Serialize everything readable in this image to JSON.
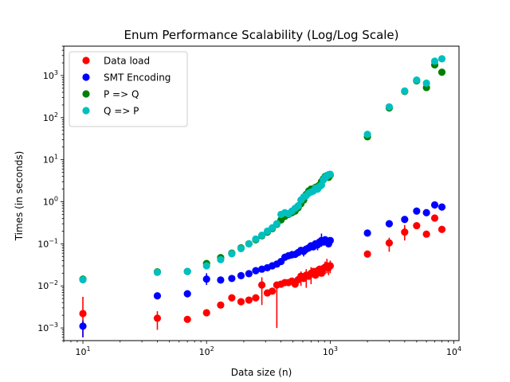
{
  "chart_data": {
    "type": "scatter",
    "title": "Enum Performance Scalability (Log/Log Scale)",
    "xlabel": "Data size (n)",
    "ylabel": "Times (in seconds)",
    "xscale": "log",
    "yscale": "log",
    "xlim": [
      7,
      11000
    ],
    "ylim": [
      0.0005,
      5000
    ],
    "x_ticks": [
      {
        "base": "10",
        "exp": "1",
        "value": 10
      },
      {
        "base": "10",
        "exp": "2",
        "value": 100
      },
      {
        "base": "10",
        "exp": "3",
        "value": 1000
      },
      {
        "base": "10",
        "exp": "4",
        "value": 10000
      }
    ],
    "y_ticks": [
      {
        "base": "10",
        "exp": "−3",
        "value": 0.001
      },
      {
        "base": "10",
        "exp": "−2",
        "value": 0.01
      },
      {
        "base": "10",
        "exp": "−1",
        "value": 0.1
      },
      {
        "base": "10",
        "exp": "0",
        "value": 1
      },
      {
        "base": "10",
        "exp": "1",
        "value": 10
      },
      {
        "base": "10",
        "exp": "2",
        "value": 100
      },
      {
        "base": "10",
        "exp": "3",
        "value": 1000
      }
    ],
    "grid": false,
    "legend_position": "top-left",
    "x": [
      10,
      40,
      70,
      100,
      130,
      160,
      190,
      220,
      250,
      280,
      310,
      340,
      370,
      400,
      430,
      460,
      490,
      520,
      550,
      580,
      610,
      640,
      670,
      700,
      730,
      760,
      790,
      820,
      850,
      880,
      910,
      940,
      970,
      1000,
      2000,
      3000,
      4000,
      5000,
      6000,
      7000,
      8000
    ],
    "series": [
      {
        "name": "Data load",
        "color": "#ff0000",
        "values": [
          0.0022,
          0.0017,
          0.0016,
          0.0023,
          0.0035,
          0.0052,
          0.0042,
          0.0046,
          0.0052,
          0.0105,
          0.0068,
          0.0075,
          0.0105,
          0.011,
          0.012,
          0.012,
          0.013,
          0.011,
          0.014,
          0.017,
          0.015,
          0.018,
          0.017,
          0.02,
          0.022,
          0.018,
          0.023,
          0.025,
          0.02,
          0.026,
          0.028,
          0.03,
          0.027,
          0.03,
          0.057,
          0.105,
          0.19,
          0.27,
          0.17,
          0.41,
          0.22
        ],
        "err_low": [
          0.0006,
          0.0009,
          0,
          0,
          0,
          0,
          0,
          0,
          0,
          0.0035,
          0,
          0,
          0.001,
          0,
          0,
          0,
          0,
          0,
          0,
          0.01,
          0,
          0.009,
          0,
          0.011,
          0,
          0,
          0,
          0,
          0,
          0,
          0.019,
          0.02,
          0.018,
          0.02,
          0,
          0.065,
          0.12,
          0,
          0,
          0,
          0
        ],
        "err_high": [
          0.0055,
          0.0025,
          0,
          0,
          0,
          0,
          0,
          0,
          0,
          0.016,
          0,
          0,
          0.012,
          0,
          0,
          0,
          0,
          0,
          0,
          0.022,
          0,
          0.025,
          0,
          0.028,
          0,
          0,
          0,
          0,
          0,
          0,
          0.038,
          0.044,
          0.036,
          0.04,
          0,
          0.14,
          0.28,
          0,
          0,
          0,
          0
        ]
      },
      {
        "name": "SMT Encoding",
        "color": "#0000ff",
        "values": [
          0.0011,
          0.0058,
          0.0065,
          0.0145,
          0.0138,
          0.015,
          0.0175,
          0.0195,
          0.023,
          0.025,
          0.027,
          0.03,
          0.033,
          0.038,
          0.048,
          0.052,
          0.055,
          0.056,
          0.062,
          0.07,
          0.066,
          0.075,
          0.08,
          0.09,
          0.085,
          0.1,
          0.094,
          0.11,
          0.12,
          0.11,
          0.125,
          0.115,
          0.1,
          0.12,
          0.18,
          0.3,
          0.38,
          0.6,
          0.55,
          0.84,
          0.75
        ],
        "err_low": [
          0.0006,
          0,
          0,
          0.0105,
          0,
          0,
          0,
          0,
          0,
          0,
          0,
          0,
          0,
          0,
          0,
          0,
          0.045,
          0,
          0,
          0,
          0.05,
          0,
          0,
          0,
          0,
          0,
          0.07,
          0,
          0.085,
          0,
          0,
          0,
          0,
          0,
          0,
          0,
          0,
          0,
          0,
          0,
          0
        ],
        "err_high": [
          0.0015,
          0,
          0,
          0.02,
          0,
          0,
          0,
          0,
          0,
          0,
          0,
          0,
          0,
          0,
          0,
          0,
          0.068,
          0,
          0,
          0,
          0.085,
          0,
          0,
          0,
          0,
          0,
          0.13,
          0,
          0.175,
          0,
          0,
          0,
          0,
          0,
          0,
          0,
          0,
          0,
          0,
          0,
          0
        ]
      },
      {
        "name": "P => Q",
        "color": "#008000",
        "values": [
          0.0145,
          0.0215,
          0.022,
          0.034,
          0.047,
          0.06,
          0.08,
          0.1,
          0.125,
          0.155,
          0.19,
          0.23,
          0.29,
          0.37,
          0.45,
          0.5,
          0.55,
          0.6,
          0.72,
          0.9,
          1.1,
          1.5,
          1.8,
          2.0,
          1.9,
          2.2,
          2.3,
          2.5,
          3.0,
          3.5,
          4.0,
          4.2,
          3.8,
          4.3,
          35,
          170,
          420,
          750,
          520,
          1800,
          1200
        ],
        "err_low": [
          0,
          0,
          0,
          0,
          0,
          0,
          0,
          0,
          0,
          0,
          0,
          0,
          0,
          0,
          0,
          0,
          0,
          0,
          0,
          0,
          0,
          0,
          0,
          0,
          0,
          0,
          0,
          0,
          0,
          0,
          0,
          0,
          0,
          0,
          0,
          0,
          0,
          0,
          0,
          0,
          0
        ],
        "err_high": [
          0,
          0,
          0,
          0,
          0,
          0,
          0,
          0,
          0,
          0,
          0,
          0,
          0,
          0,
          0,
          0,
          0,
          0,
          0,
          0,
          0,
          0,
          0,
          0,
          0,
          0,
          0,
          0,
          0,
          0,
          0,
          0,
          0,
          0,
          0,
          0,
          0,
          0,
          0,
          0,
          0
        ]
      },
      {
        "name": "Q => P",
        "color": "#00bfbf",
        "values": [
          0.014,
          0.021,
          0.022,
          0.03,
          0.042,
          0.058,
          0.077,
          0.1,
          0.13,
          0.16,
          0.2,
          0.24,
          0.3,
          0.5,
          0.55,
          0.52,
          0.6,
          0.7,
          0.8,
          1.1,
          1.3,
          1.4,
          1.6,
          1.7,
          1.8,
          2.1,
          2.0,
          2.3,
          2.5,
          3.3,
          3.8,
          4.1,
          4.4,
          4.5,
          40,
          180,
          430,
          780,
          660,
          2200,
          2500
        ],
        "err_low": [
          0,
          0,
          0,
          0,
          0,
          0,
          0,
          0,
          0,
          0,
          0,
          0,
          0,
          0,
          0,
          0,
          0,
          0,
          0,
          0,
          0,
          0,
          0,
          0,
          0,
          0,
          0,
          0,
          0,
          0,
          0,
          0,
          0,
          0,
          0,
          0,
          0,
          0,
          0,
          0,
          0
        ],
        "err_high": [
          0,
          0,
          0,
          0,
          0,
          0,
          0,
          0,
          0,
          0,
          0,
          0,
          0,
          0,
          0,
          0,
          0,
          0,
          0,
          0,
          0,
          0,
          0,
          0,
          0,
          0,
          0,
          0,
          0,
          0,
          0,
          0,
          0,
          0,
          0,
          0,
          0,
          0,
          0,
          0,
          0
        ]
      }
    ]
  }
}
